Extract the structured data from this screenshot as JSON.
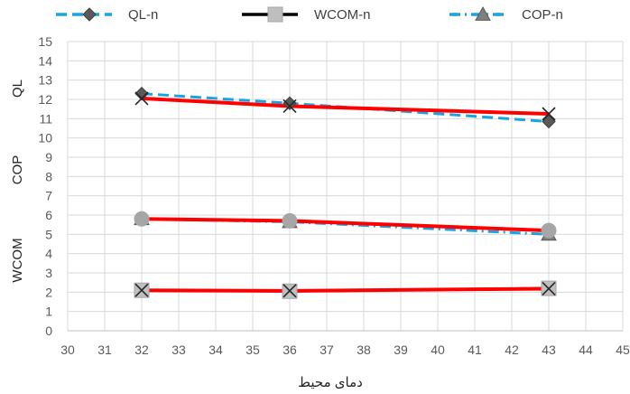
{
  "chart_data": {
    "type": "line",
    "xlabel": "دمای محیط",
    "ylabels": [
      "QL",
      "COP",
      "WCOM"
    ],
    "xlim": [
      30,
      45
    ],
    "ylim": [
      0,
      15
    ],
    "x_ticks": [
      30,
      31,
      32,
      33,
      34,
      35,
      36,
      37,
      38,
      39,
      40,
      41,
      42,
      43,
      44,
      45
    ],
    "y_ticks": [
      0,
      1,
      2,
      3,
      4,
      5,
      6,
      7,
      8,
      9,
      10,
      11,
      12,
      13,
      14,
      15
    ],
    "grid": true,
    "legend_position": "top",
    "legend": [
      {
        "name": "QL-n",
        "style": "dashed",
        "marker": "diamond",
        "color": "#1BA3E0"
      },
      {
        "name": "WCOM-n",
        "style": "solid",
        "marker": "square",
        "color": "#000000"
      },
      {
        "name": "COP-n",
        "style": "dash-dot",
        "marker": "triangle",
        "color": "#1BA3E0"
      }
    ],
    "series": [
      {
        "key": "ql_n",
        "x": [
          32,
          36,
          43
        ],
        "y": [
          12.3,
          11.8,
          10.85
        ],
        "style": "dashed",
        "marker": "diamond",
        "color": "#1BA3E0"
      },
      {
        "key": "ql",
        "x": [
          32,
          36,
          43
        ],
        "y": [
          12.05,
          11.65,
          11.25
        ],
        "style": "solid",
        "marker": "x",
        "color": "#FF0000"
      },
      {
        "key": "cop_n",
        "x": [
          32,
          36,
          43
        ],
        "y": [
          5.8,
          5.65,
          5.0
        ],
        "style": "dash-dot",
        "marker": "triangle",
        "color": "#1BA3E0"
      },
      {
        "key": "cop",
        "x": [
          32,
          36,
          43
        ],
        "y": [
          5.8,
          5.7,
          5.2
        ],
        "style": "solid",
        "marker": "circle",
        "color": "#FF0000"
      },
      {
        "key": "wcom_n",
        "x": [
          32,
          36,
          43
        ],
        "y": [
          2.1,
          2.05,
          2.2
        ],
        "style": "solid",
        "marker": "square",
        "color": "#000000"
      },
      {
        "key": "wcom",
        "x": [
          32,
          36,
          43
        ],
        "y": [
          2.1,
          2.07,
          2.18
        ],
        "style": "solid",
        "marker": "x",
        "color": "#FF0000"
      }
    ]
  }
}
